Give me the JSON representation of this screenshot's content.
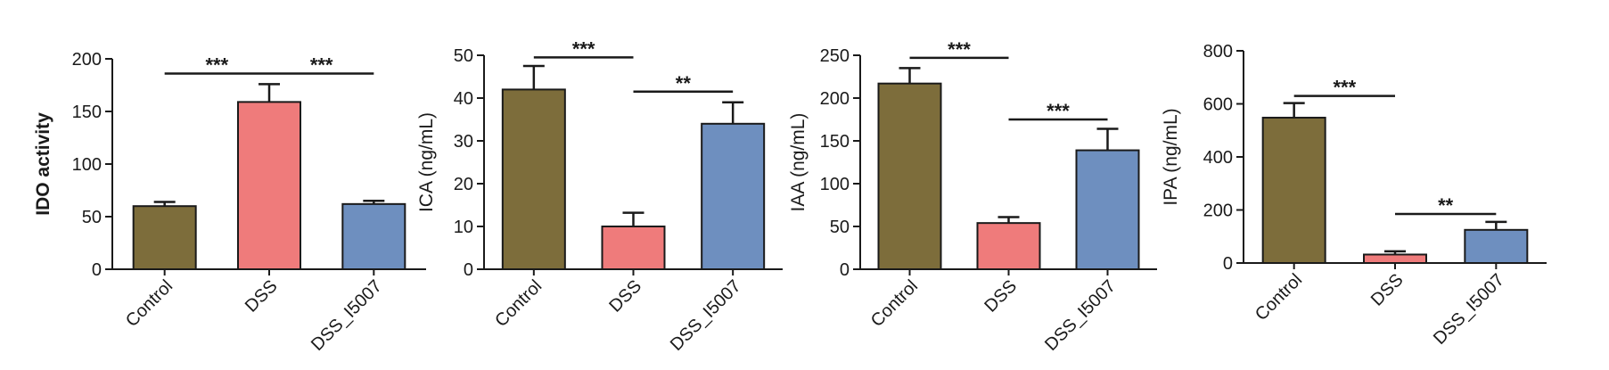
{
  "colors": {
    "Control": "#7d6d3b",
    "DSS": "#ef7b7b",
    "DSS_I5007": "#6e8fbf",
    "axis": "#1a1a1a"
  },
  "chart_data": [
    {
      "type": "bar",
      "ylabel": "IDO activity",
      "ylabel_bold": true,
      "categories": [
        "Control",
        "DSS",
        "DSS_I5007"
      ],
      "values": [
        60,
        159,
        62
      ],
      "errors": [
        4,
        17,
        3
      ],
      "ylim": [
        0,
        200
      ],
      "yticks": [
        0,
        50,
        100,
        150,
        200
      ],
      "significance": [
        {
          "from": 0,
          "to": 1,
          "label": "***",
          "y": 186
        },
        {
          "from": 1,
          "to": 2,
          "label": "***",
          "y": 186
        }
      ]
    },
    {
      "type": "bar",
      "ylabel": "ICA (ng/mL)",
      "ylabel_bold": false,
      "categories": [
        "Control",
        "DSS",
        "DSS_I5007"
      ],
      "values": [
        42,
        10,
        34
      ],
      "errors": [
        5.5,
        3.2,
        5
      ],
      "ylim": [
        0,
        50
      ],
      "yticks": [
        0,
        10,
        20,
        30,
        40,
        50
      ],
      "significance": [
        {
          "from": 0,
          "to": 1,
          "label": "***",
          "y": 49.5
        },
        {
          "from": 1,
          "to": 2,
          "label": "**",
          "y": 41.5
        }
      ]
    },
    {
      "type": "bar",
      "ylabel": "IAA (ng/mL)",
      "ylabel_bold": false,
      "categories": [
        "Control",
        "DSS",
        "DSS_I5007"
      ],
      "values": [
        217,
        54,
        139
      ],
      "errors": [
        18,
        7,
        25
      ],
      "ylim": [
        0,
        250
      ],
      "yticks": [
        0,
        50,
        100,
        150,
        200,
        250
      ],
      "significance": [
        {
          "from": 0,
          "to": 1,
          "label": "***",
          "y": 247
        },
        {
          "from": 1,
          "to": 2,
          "label": "***",
          "y": 175
        }
      ]
    },
    {
      "type": "bar",
      "ylabel": "IPA (ng/mL)",
      "ylabel_bold": false,
      "categories": [
        "Control",
        "DSS",
        "DSS_I5007"
      ],
      "values": [
        548,
        32,
        125
      ],
      "errors": [
        55,
        12,
        30
      ],
      "ylim": [
        0,
        800
      ],
      "yticks": [
        0,
        200,
        400,
        600,
        800
      ],
      "significance": [
        {
          "from": 0,
          "to": 1,
          "label": "***",
          "y": 630
        },
        {
          "from": 1,
          "to": 2,
          "label": "**",
          "y": 185
        }
      ]
    }
  ]
}
